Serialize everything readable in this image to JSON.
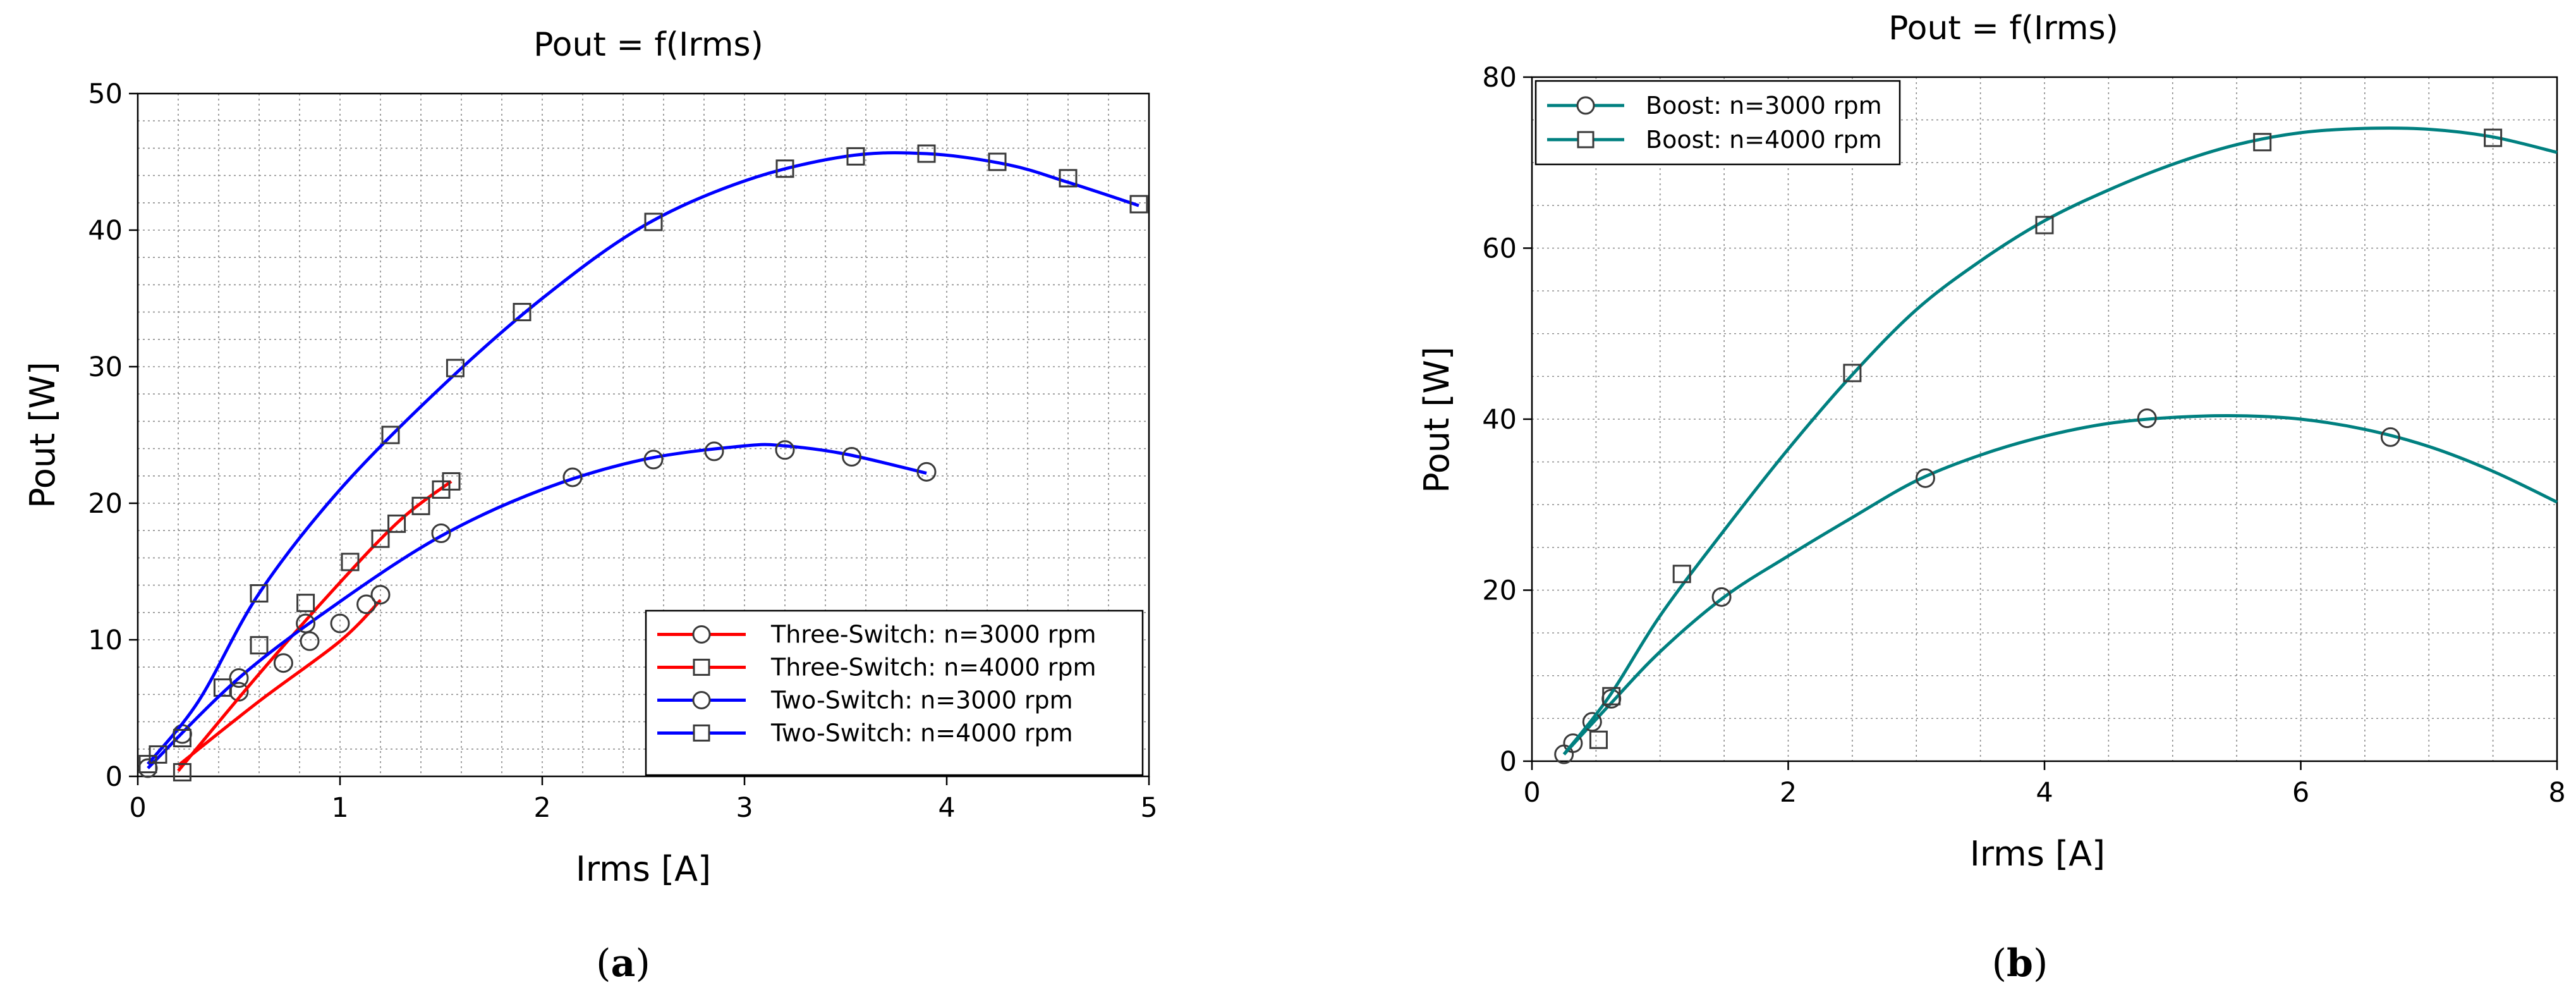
{
  "chart_data": [
    {
      "type": "line",
      "title": "Pout = f(Irms)",
      "xlabel": "Irms [A]",
      "ylabel": "Pout [W]",
      "xlim": [
        0,
        5
      ],
      "ylim": [
        0,
        50
      ],
      "xticks": [
        0,
        1,
        2,
        3,
        4,
        5
      ],
      "yticks": [
        0,
        10,
        20,
        30,
        40,
        50
      ],
      "grid": true,
      "legend_position": "bottom-right",
      "caption": "a",
      "series": [
        {
          "name": "Three-Switch: n=3000 rpm",
          "color": "#ff0000",
          "marker": "circle",
          "curve": [
            [
              0.2,
              0.8
            ],
            [
              0.6,
              5.5
            ],
            [
              1.0,
              9.9
            ],
            [
              1.2,
              12.9
            ]
          ],
          "markers": [
            [
              0.5,
              6.2
            ],
            [
              0.72,
              8.3
            ],
            [
              0.85,
              9.9
            ],
            [
              1.0,
              11.2
            ],
            [
              1.13,
              12.6
            ],
            [
              1.2,
              13.3
            ]
          ]
        },
        {
          "name": "Three-Switch: n=4000 rpm",
          "color": "#ff0000",
          "marker": "square",
          "curve": [
            [
              0.2,
              0.4
            ],
            [
              0.6,
              7.5
            ],
            [
              1.0,
              14.2
            ],
            [
              1.3,
              18.8
            ],
            [
              1.55,
              21.6
            ]
          ],
          "markers": [
            [
              0.22,
              0.3
            ],
            [
              0.42,
              6.5
            ],
            [
              0.6,
              9.6
            ],
            [
              0.83,
              12.7
            ],
            [
              1.05,
              15.7
            ],
            [
              1.2,
              17.4
            ],
            [
              1.28,
              18.5
            ],
            [
              1.4,
              19.8
            ],
            [
              1.5,
              21.0
            ],
            [
              1.55,
              21.6
            ]
          ]
        },
        {
          "name": "Two-Switch: n=3000 rpm",
          "color": "#0000ff",
          "marker": "circle",
          "curve": [
            [
              0.05,
              0.6
            ],
            [
              0.5,
              7.2
            ],
            [
              1.0,
              12.8
            ],
            [
              1.5,
              17.6
            ],
            [
              2.0,
              21.0
            ],
            [
              2.5,
              23.2
            ],
            [
              3.0,
              24.2
            ],
            [
              3.2,
              24.2
            ],
            [
              3.5,
              23.6
            ],
            [
              3.9,
              22.2
            ]
          ],
          "markers": [
            [
              0.05,
              0.6
            ],
            [
              0.22,
              3.1
            ],
            [
              0.5,
              7.2
            ],
            [
              0.83,
              11.2
            ],
            [
              1.5,
              17.8
            ],
            [
              2.15,
              21.9
            ],
            [
              2.55,
              23.2
            ],
            [
              2.85,
              23.8
            ],
            [
              3.2,
              23.9
            ],
            [
              3.53,
              23.4
            ],
            [
              3.9,
              22.3
            ]
          ]
        },
        {
          "name": "Two-Switch: n=4000 rpm",
          "color": "#0000ff",
          "marker": "square",
          "curve": [
            [
              0.05,
              0.9
            ],
            [
              0.3,
              5.5
            ],
            [
              0.6,
              13.4
            ],
            [
              1.0,
              21.0
            ],
            [
              1.5,
              28.5
            ],
            [
              2.0,
              35.0
            ],
            [
              2.5,
              40.3
            ],
            [
              3.0,
              43.6
            ],
            [
              3.5,
              45.4
            ],
            [
              3.9,
              45.6
            ],
            [
              4.3,
              44.8
            ],
            [
              4.6,
              43.5
            ],
            [
              4.95,
              41.8
            ]
          ],
          "markers": [
            [
              0.05,
              0.9
            ],
            [
              0.1,
              1.6
            ],
            [
              0.22,
              2.8
            ],
            [
              0.6,
              13.4
            ],
            [
              1.25,
              25.0
            ],
            [
              1.57,
              29.9
            ],
            [
              1.9,
              34.0
            ],
            [
              2.55,
              40.6
            ],
            [
              3.2,
              44.5
            ],
            [
              3.55,
              45.4
            ],
            [
              3.9,
              45.6
            ],
            [
              4.25,
              45.0
            ],
            [
              4.6,
              43.8
            ],
            [
              4.95,
              41.9
            ]
          ]
        }
      ]
    },
    {
      "type": "line",
      "title": "Pout = f(Irms)",
      "xlabel": "Irms [A]",
      "ylabel": "Pout [W]",
      "xlim": [
        0,
        8
      ],
      "ylim": [
        0,
        80
      ],
      "xticks": [
        0,
        2,
        4,
        6,
        8
      ],
      "yticks": [
        0,
        20,
        40,
        60,
        80
      ],
      "grid": true,
      "legend_position": "top-left",
      "caption": "b",
      "series": [
        {
          "name": "Boost: n=3000 rpm",
          "color": "#008080",
          "marker": "circle",
          "curve": [
            [
              0.25,
              0.8
            ],
            [
              0.6,
              6.5
            ],
            [
              1.0,
              12.8
            ],
            [
              1.5,
              19.2
            ],
            [
              2.0,
              24.0
            ],
            [
              2.5,
              28.5
            ],
            [
              3.0,
              32.8
            ],
            [
              3.5,
              35.8
            ],
            [
              4.0,
              38.0
            ],
            [
              4.5,
              39.5
            ],
            [
              5.0,
              40.2
            ],
            [
              5.5,
              40.4
            ],
            [
              6.0,
              40.0
            ],
            [
              6.5,
              38.8
            ],
            [
              7.0,
              36.8
            ],
            [
              7.5,
              33.9
            ],
            [
              8.0,
              30.3
            ]
          ],
          "markers": [
            [
              0.25,
              0.8
            ],
            [
              0.32,
              2.1
            ],
            [
              0.47,
              4.6
            ],
            [
              0.62,
              7.3
            ],
            [
              1.48,
              19.2
            ],
            [
              3.07,
              33.1
            ],
            [
              4.8,
              40.1
            ],
            [
              6.7,
              37.9
            ]
          ]
        },
        {
          "name": "Boost: n=4000 rpm",
          "color": "#008080",
          "marker": "square",
          "curve": [
            [
              0.25,
              0.8
            ],
            [
              0.6,
              7.5
            ],
            [
              1.0,
              17.0
            ],
            [
              1.5,
              27.0
            ],
            [
              2.0,
              36.5
            ],
            [
              2.5,
              45.2
            ],
            [
              3.0,
              52.8
            ],
            [
              3.5,
              58.5
            ],
            [
              4.0,
              63.2
            ],
            [
              4.5,
              66.8
            ],
            [
              5.0,
              69.8
            ],
            [
              5.5,
              72.1
            ],
            [
              6.0,
              73.5
            ],
            [
              6.5,
              74.0
            ],
            [
              7.0,
              73.9
            ],
            [
              7.5,
              73.0
            ],
            [
              8.0,
              71.2
            ]
          ],
          "markers": [
            [
              0.52,
              2.5
            ],
            [
              0.62,
              7.6
            ],
            [
              1.17,
              21.9
            ],
            [
              2.5,
              45.4
            ],
            [
              4.0,
              62.7
            ],
            [
              5.7,
              72.4
            ],
            [
              7.5,
              72.9
            ]
          ]
        }
      ]
    }
  ]
}
